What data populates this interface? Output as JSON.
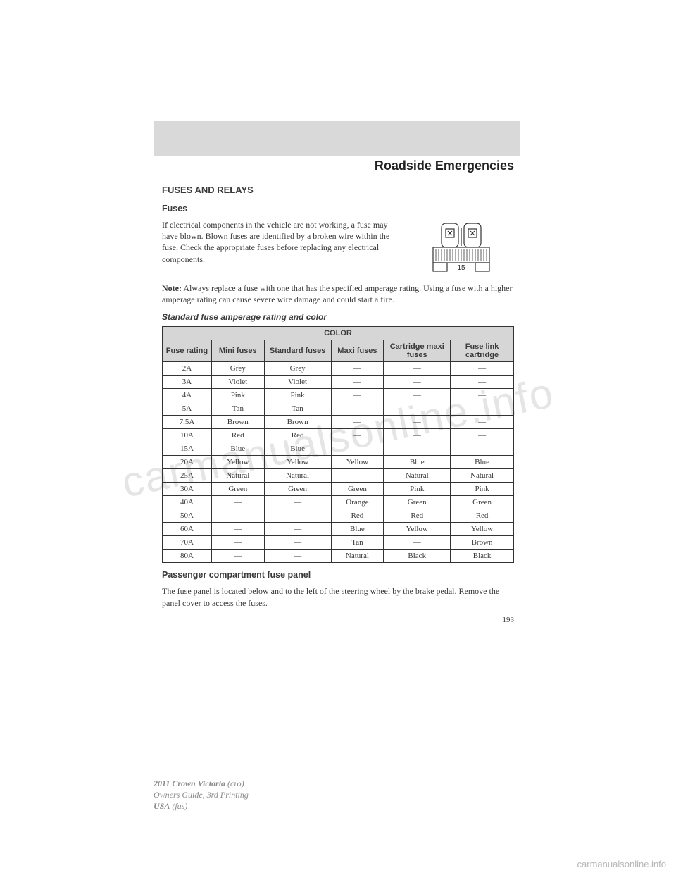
{
  "colors": {
    "page_bg": "#ffffff",
    "shade": "#d9d9d9",
    "text": "#3a3a3a",
    "footer_text": "#8a8a8a",
    "table_header_bg": "#d6d6d6",
    "table_border": "#333333",
    "watermark": "rgba(180,180,180,0.35)",
    "bottom_wm": "#b7b7b7"
  },
  "watermark_text": "carmanualsonline.info",
  "bottom_watermark": "carmanualsonline.info",
  "chapter_title": "Roadside Emergencies",
  "section_heading": "FUSES AND RELAYS",
  "sub_heading": "Fuses",
  "intro_para": "If electrical components in the vehicle are not working, a fuse may have blown. Blown fuses are identified by a broken wire within the fuse. Check the appropriate fuses before replacing any electrical components.",
  "note_label": "Note:",
  "note_text": " Always replace a fuse with one that has the specified amperage rating. Using a fuse with a higher amperage rating can cause severe wire damage and could start a fire.",
  "table_caption": "Standard fuse amperage rating and color",
  "fuse_table": {
    "super_header": "COLOR",
    "columns": [
      "Fuse rating",
      "Mini fuses",
      "Standard fuses",
      "Maxi fuses",
      "Cartridge maxi fuses",
      "Fuse link cartridge"
    ],
    "col_widths_pct": [
      14,
      15,
      19,
      15,
      19,
      18
    ],
    "rows": [
      [
        "2A",
        "Grey",
        "Grey",
        "—",
        "—",
        "—"
      ],
      [
        "3A",
        "Violet",
        "Violet",
        "—",
        "—",
        "—"
      ],
      [
        "4A",
        "Pink",
        "Pink",
        "—",
        "—",
        "—"
      ],
      [
        "5A",
        "Tan",
        "Tan",
        "—",
        "—",
        "—"
      ],
      [
        "7.5A",
        "Brown",
        "Brown",
        "—",
        "—",
        "—"
      ],
      [
        "10A",
        "Red",
        "Red",
        "—",
        "—",
        "—"
      ],
      [
        "15A",
        "Blue",
        "Blue",
        "—",
        "—",
        "—"
      ],
      [
        "20A",
        "Yellow",
        "Yellow",
        "Yellow",
        "Blue",
        "Blue"
      ],
      [
        "25A",
        "Natural",
        "Natural",
        "—",
        "Natural",
        "Natural"
      ],
      [
        "30A",
        "Green",
        "Green",
        "Green",
        "Pink",
        "Pink"
      ],
      [
        "40A",
        "—",
        "—",
        "Orange",
        "Green",
        "Green"
      ],
      [
        "50A",
        "—",
        "—",
        "Red",
        "Red",
        "Red"
      ],
      [
        "60A",
        "—",
        "—",
        "Blue",
        "Yellow",
        "Yellow"
      ],
      [
        "70A",
        "—",
        "—",
        "Tan",
        "—",
        "Brown"
      ],
      [
        "80A",
        "—",
        "—",
        "Natural",
        "Black",
        "Black"
      ]
    ]
  },
  "panel_heading": "Passenger compartment fuse panel",
  "panel_text": "The fuse panel is located below and to the left of the steering wheel by the brake pedal. Remove the panel cover to access the fuses.",
  "page_number": "193",
  "footer": {
    "line1_bold": "2011 Crown Victoria",
    "line1_paren": " (cro)",
    "line2": "Owners Guide, 3rd Printing",
    "line3_bold": "USA",
    "line3_paren": " (fus)"
  },
  "fuse_illustration": {
    "label": "15",
    "stroke": "#333333",
    "fill": "#ffffff"
  }
}
